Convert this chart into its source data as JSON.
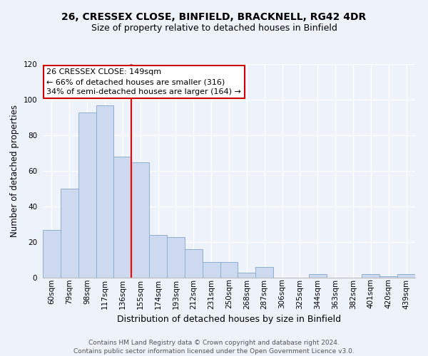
{
  "title": "26, CRESSEX CLOSE, BINFIELD, BRACKNELL, RG42 4DR",
  "subtitle": "Size of property relative to detached houses in Binfield",
  "xlabel": "Distribution of detached houses by size in Binfield",
  "ylabel": "Number of detached properties",
  "bar_labels": [
    "60sqm",
    "79sqm",
    "98sqm",
    "117sqm",
    "136sqm",
    "155sqm",
    "174sqm",
    "193sqm",
    "212sqm",
    "231sqm",
    "250sqm",
    "268sqm",
    "287sqm",
    "306sqm",
    "325sqm",
    "344sqm",
    "363sqm",
    "382sqm",
    "401sqm",
    "420sqm",
    "439sqm"
  ],
  "bar_values": [
    27,
    50,
    93,
    97,
    68,
    65,
    24,
    23,
    16,
    9,
    9,
    3,
    6,
    0,
    0,
    2,
    0,
    0,
    2,
    1,
    2
  ],
  "bar_color": "#ccd9ee",
  "bar_edge_color": "#8bafd4",
  "ylim": [
    0,
    120
  ],
  "yticks": [
    0,
    20,
    40,
    60,
    80,
    100,
    120
  ],
  "red_line_index": 4.5,
  "annotation_title": "26 CRESSEX CLOSE: 149sqm",
  "annotation_line1": "← 66% of detached houses are smaller (316)",
  "annotation_line2": "34% of semi-detached houses are larger (164) →",
  "annotation_box_color": "#ffffff",
  "annotation_box_edge": "#cc0000",
  "footer1": "Contains HM Land Registry data © Crown copyright and database right 2024.",
  "footer2": "Contains public sector information licensed under the Open Government Licence v3.0.",
  "background_color": "#eef2fa",
  "grid_color": "#ffffff",
  "title_fontsize": 10,
  "subtitle_fontsize": 9,
  "ylabel_fontsize": 8.5,
  "xlabel_fontsize": 9,
  "tick_fontsize": 7.5,
  "footer_fontsize": 6.5,
  "ann_fontsize": 8
}
